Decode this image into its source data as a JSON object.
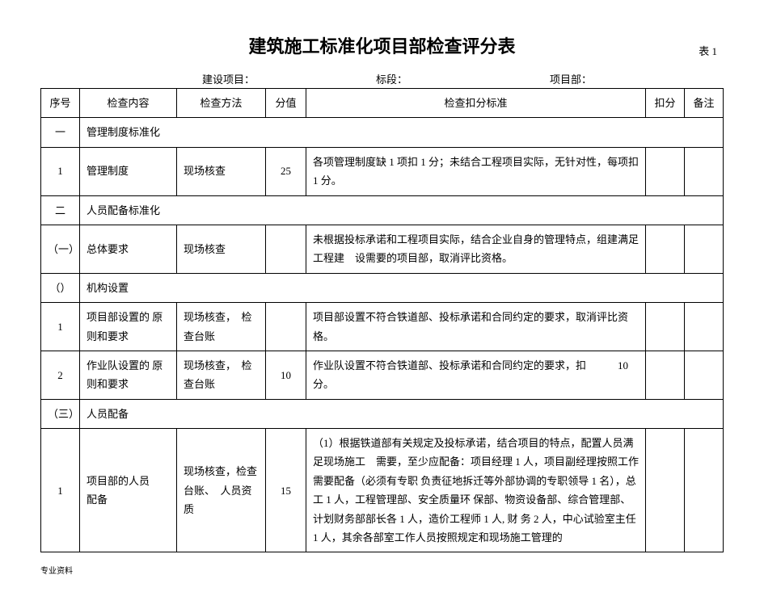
{
  "title": "建筑施工标准化项目部检查评分表",
  "table_label": "表 1",
  "info": {
    "jianshe_label": "建设项目：",
    "biaoduan_label": "标段：",
    "xiangmubu_label": "项目部："
  },
  "columns": {
    "seq": "序号",
    "content": "检查内容",
    "method": "检查方法",
    "score": "分值",
    "standard": "检查扣分标准",
    "deduct": "扣分",
    "remark": "备注"
  },
  "rows": {
    "r1": {
      "seq": "一",
      "content": "管理制度标准化"
    },
    "r2": {
      "seq": "1",
      "content": "管理制度",
      "method": "现场核查",
      "score": "25",
      "standard": "各项管理制度缺 1 项扣 1 分；未结合工程项目实际，无针对性，每项扣 1 分。"
    },
    "r3": {
      "seq": "二",
      "content": "人员配备标准化"
    },
    "r4": {
      "seq": "（一）",
      "content": "总体要求",
      "method": "现场核查",
      "standard": "未根据投标承诺和工程项目实际，结合企业自身的管理特点，组建满足工程建　设需要的项目部，取消评比资格。"
    },
    "r5": {
      "seq": "（）",
      "content": "机构设置"
    },
    "r6": {
      "seq": "1",
      "content": "项目部设置的 原则和要求",
      "method": "现场核查，　检查台账",
      "standard": "项目部设置不符合铁道部、投标承诺和合同约定的要求，取消评比资格。"
    },
    "r7": {
      "seq": "2",
      "content": "作业队设置的 原则和要求",
      "method": "现场核查，　检查台账",
      "score": "10",
      "standard": "作业队设置不符合铁道部、投标承诺和合同约定的要求，扣　　　10 分。"
    },
    "r8": {
      "seq": "（三）",
      "content": "人员配备"
    },
    "r9": {
      "seq": "1",
      "content": "项目部的人员　配备",
      "method": "现场核查，检查台账、　人员资质",
      "score": "15",
      "standard": "（1）根据铁道部有关规定及投标承诺，结合项目的特点，配置人员满足现场施工　需要，至少应配备：项目经理 1 人，项目副经理按照工作需要配备（必须有专职 负责征地拆迁等外部协调的专职领导 1 名），总工 1 人，工程管理部、安全质量环 保部、物资设备部、综合管理部、计划财务部部长各 1 人，造价工程师 1 人, 财 务 2 人，中心试验室主任 1 人，其余各部室工作人员按照规定和现场施工管理的"
    }
  },
  "footer": "专业资料"
}
